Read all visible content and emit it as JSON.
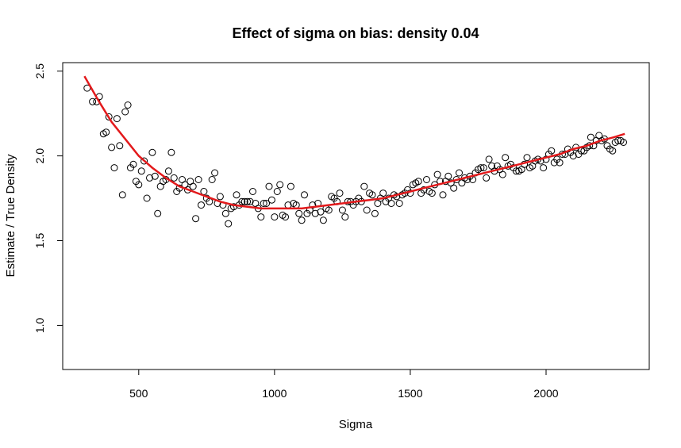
{
  "chart_data": {
    "type": "scatter",
    "title": "Effect of sigma on bias: density 0.04",
    "xlabel": "Sigma",
    "ylabel": "Estimate / True Density",
    "xlim": [
      220,
      2380
    ],
    "ylim": [
      0.74,
      2.55
    ],
    "xticks": [
      500,
      1000,
      1500,
      2000
    ],
    "yticks": [
      1.0,
      1.5,
      2.0,
      2.5
    ],
    "xtick_labels": [
      "500",
      "1000",
      "1500",
      "2000"
    ],
    "ytick_labels": [
      "1.0",
      "1.5",
      "2.0",
      "2.5"
    ],
    "grid": false,
    "legend": "none",
    "colors": {
      "points": "#000000",
      "fit": "#e31a1c"
    },
    "series": [
      {
        "type": "scatter",
        "points": [
          [
            310,
            2.4
          ],
          [
            330,
            2.32
          ],
          [
            345,
            2.32
          ],
          [
            355,
            2.35
          ],
          [
            370,
            2.13
          ],
          [
            380,
            2.14
          ],
          [
            390,
            2.23
          ],
          [
            400,
            2.05
          ],
          [
            410,
            1.93
          ],
          [
            420,
            2.22
          ],
          [
            430,
            2.06
          ],
          [
            440,
            1.77
          ],
          [
            450,
            2.26
          ],
          [
            460,
            2.3
          ],
          [
            470,
            1.93
          ],
          [
            480,
            1.95
          ],
          [
            490,
            1.85
          ],
          [
            500,
            1.83
          ],
          [
            510,
            1.91
          ],
          [
            520,
            1.97
          ],
          [
            530,
            1.75
          ],
          [
            540,
            1.87
          ],
          [
            550,
            2.02
          ],
          [
            560,
            1.88
          ],
          [
            570,
            1.66
          ],
          [
            580,
            1.82
          ],
          [
            590,
            1.85
          ],
          [
            600,
            1.86
          ],
          [
            610,
            1.91
          ],
          [
            620,
            2.02
          ],
          [
            630,
            1.87
          ],
          [
            640,
            1.79
          ],
          [
            650,
            1.81
          ],
          [
            660,
            1.86
          ],
          [
            670,
            1.83
          ],
          [
            680,
            1.8
          ],
          [
            690,
            1.85
          ],
          [
            700,
            1.82
          ],
          [
            710,
            1.63
          ],
          [
            720,
            1.86
          ],
          [
            730,
            1.71
          ],
          [
            740,
            1.79
          ],
          [
            750,
            1.75
          ],
          [
            760,
            1.73
          ],
          [
            770,
            1.86
          ],
          [
            780,
            1.9
          ],
          [
            790,
            1.72
          ],
          [
            800,
            1.76
          ],
          [
            810,
            1.71
          ],
          [
            820,
            1.66
          ],
          [
            830,
            1.6
          ],
          [
            840,
            1.69
          ],
          [
            850,
            1.7
          ],
          [
            860,
            1.77
          ],
          [
            870,
            1.71
          ],
          [
            880,
            1.73
          ],
          [
            890,
            1.73
          ],
          [
            900,
            1.73
          ],
          [
            910,
            1.73
          ],
          [
            920,
            1.79
          ],
          [
            930,
            1.72
          ],
          [
            940,
            1.69
          ],
          [
            950,
            1.64
          ],
          [
            960,
            1.72
          ],
          [
            970,
            1.72
          ],
          [
            980,
            1.82
          ],
          [
            990,
            1.74
          ],
          [
            1000,
            1.64
          ],
          [
            1010,
            1.79
          ],
          [
            1020,
            1.83
          ],
          [
            1030,
            1.65
          ],
          [
            1040,
            1.64
          ],
          [
            1050,
            1.71
          ],
          [
            1060,
            1.82
          ],
          [
            1070,
            1.72
          ],
          [
            1080,
            1.71
          ],
          [
            1090,
            1.66
          ],
          [
            1100,
            1.62
          ],
          [
            1110,
            1.77
          ],
          [
            1120,
            1.66
          ],
          [
            1130,
            1.68
          ],
          [
            1140,
            1.71
          ],
          [
            1150,
            1.66
          ],
          [
            1160,
            1.72
          ],
          [
            1170,
            1.67
          ],
          [
            1180,
            1.62
          ],
          [
            1190,
            1.69
          ],
          [
            1200,
            1.68
          ],
          [
            1210,
            1.76
          ],
          [
            1220,
            1.75
          ],
          [
            1230,
            1.73
          ],
          [
            1240,
            1.78
          ],
          [
            1250,
            1.68
          ],
          [
            1260,
            1.64
          ],
          [
            1270,
            1.73
          ],
          [
            1280,
            1.73
          ],
          [
            1290,
            1.71
          ],
          [
            1300,
            1.73
          ],
          [
            1310,
            1.75
          ],
          [
            1320,
            1.73
          ],
          [
            1330,
            1.82
          ],
          [
            1340,
            1.68
          ],
          [
            1350,
            1.78
          ],
          [
            1360,
            1.77
          ],
          [
            1370,
            1.66
          ],
          [
            1380,
            1.72
          ],
          [
            1390,
            1.75
          ],
          [
            1400,
            1.78
          ],
          [
            1410,
            1.73
          ],
          [
            1420,
            1.75
          ],
          [
            1430,
            1.72
          ],
          [
            1440,
            1.77
          ],
          [
            1450,
            1.76
          ],
          [
            1460,
            1.72
          ],
          [
            1470,
            1.77
          ],
          [
            1480,
            1.78
          ],
          [
            1490,
            1.8
          ],
          [
            1500,
            1.78
          ],
          [
            1510,
            1.83
          ],
          [
            1520,
            1.84
          ],
          [
            1530,
            1.85
          ],
          [
            1540,
            1.78
          ],
          [
            1550,
            1.8
          ],
          [
            1560,
            1.86
          ],
          [
            1570,
            1.79
          ],
          [
            1580,
            1.78
          ],
          [
            1590,
            1.83
          ],
          [
            1600,
            1.89
          ],
          [
            1610,
            1.85
          ],
          [
            1620,
            1.77
          ],
          [
            1630,
            1.85
          ],
          [
            1640,
            1.88
          ],
          [
            1650,
            1.84
          ],
          [
            1660,
            1.81
          ],
          [
            1670,
            1.86
          ],
          [
            1680,
            1.9
          ],
          [
            1690,
            1.84
          ],
          [
            1700,
            1.87
          ],
          [
            1710,
            1.86
          ],
          [
            1720,
            1.88
          ],
          [
            1730,
            1.86
          ],
          [
            1740,
            1.9
          ],
          [
            1750,
            1.92
          ],
          [
            1760,
            1.93
          ],
          [
            1770,
            1.93
          ],
          [
            1780,
            1.87
          ],
          [
            1790,
            1.98
          ],
          [
            1800,
            1.94
          ],
          [
            1810,
            1.91
          ],
          [
            1820,
            1.94
          ],
          [
            1830,
            1.92
          ],
          [
            1840,
            1.89
          ],
          [
            1850,
            1.99
          ],
          [
            1860,
            1.94
          ],
          [
            1870,
            1.95
          ],
          [
            1880,
            1.93
          ],
          [
            1890,
            1.91
          ],
          [
            1900,
            1.91
          ],
          [
            1910,
            1.92
          ],
          [
            1920,
            1.95
          ],
          [
            1930,
            1.99
          ],
          [
            1940,
            1.93
          ],
          [
            1950,
            1.94
          ],
          [
            1960,
            1.97
          ],
          [
            1970,
            1.98
          ],
          [
            1980,
            1.97
          ],
          [
            1990,
            1.93
          ],
          [
            2000,
            1.98
          ],
          [
            2010,
            2.01
          ],
          [
            2020,
            2.03
          ],
          [
            2030,
            1.96
          ],
          [
            2040,
            1.98
          ],
          [
            2050,
            1.96
          ],
          [
            2060,
            2.01
          ],
          [
            2070,
            2.01
          ],
          [
            2080,
            2.04
          ],
          [
            2090,
            2.02
          ],
          [
            2100,
            2.0
          ],
          [
            2110,
            2.05
          ],
          [
            2120,
            2.01
          ],
          [
            2130,
            2.03
          ],
          [
            2140,
            2.03
          ],
          [
            2150,
            2.05
          ],
          [
            2160,
            2.06
          ],
          [
            2165,
            2.11
          ],
          [
            2175,
            2.06
          ],
          [
            2185,
            2.09
          ],
          [
            2195,
            2.12
          ],
          [
            2205,
            2.09
          ],
          [
            2215,
            2.1
          ],
          [
            2225,
            2.06
          ],
          [
            2235,
            2.04
          ],
          [
            2245,
            2.03
          ],
          [
            2255,
            2.08
          ],
          [
            2265,
            2.09
          ],
          [
            2275,
            2.09
          ],
          [
            2285,
            2.08
          ]
        ]
      },
      {
        "type": "line",
        "points": [
          [
            300,
            2.47
          ],
          [
            350,
            2.33
          ],
          [
            400,
            2.2
          ],
          [
            450,
            2.1
          ],
          [
            500,
            2.0
          ],
          [
            550,
            1.93
          ],
          [
            600,
            1.87
          ],
          [
            650,
            1.82
          ],
          [
            700,
            1.79
          ],
          [
            750,
            1.76
          ],
          [
            800,
            1.73
          ],
          [
            850,
            1.71
          ],
          [
            900,
            1.7
          ],
          [
            950,
            1.69
          ],
          [
            1000,
            1.69
          ],
          [
            1050,
            1.69
          ],
          [
            1100,
            1.69
          ],
          [
            1150,
            1.7
          ],
          [
            1200,
            1.71
          ],
          [
            1250,
            1.72
          ],
          [
            1300,
            1.73
          ],
          [
            1350,
            1.74
          ],
          [
            1400,
            1.75
          ],
          [
            1450,
            1.77
          ],
          [
            1500,
            1.79
          ],
          [
            1550,
            1.81
          ],
          [
            1600,
            1.83
          ],
          [
            1650,
            1.85
          ],
          [
            1700,
            1.87
          ],
          [
            1750,
            1.89
          ],
          [
            1800,
            1.91
          ],
          [
            1850,
            1.93
          ],
          [
            1900,
            1.95
          ],
          [
            1950,
            1.97
          ],
          [
            2000,
            1.99
          ],
          [
            2050,
            2.01
          ],
          [
            2100,
            2.04
          ],
          [
            2150,
            2.06
          ],
          [
            2200,
            2.09
          ],
          [
            2250,
            2.11
          ],
          [
            2290,
            2.13
          ]
        ]
      }
    ]
  }
}
